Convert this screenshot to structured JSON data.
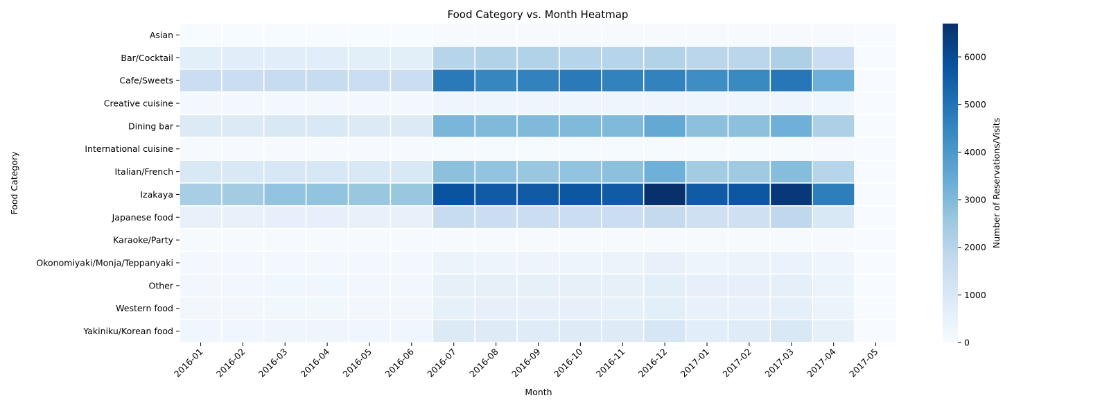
{
  "chart_data": {
    "type": "heatmap",
    "title": "Food Category vs. Month Heatmap",
    "xlabel": "Month",
    "ylabel": "Food Category",
    "colorbar_label": "Number of Reservations/Visits",
    "colorscale": "Blues",
    "vmin": 0,
    "vmax": 6700,
    "colorbar_ticks": [
      0,
      1000,
      2000,
      3000,
      4000,
      5000,
      6000
    ],
    "x": [
      "2016-01",
      "2016-02",
      "2016-03",
      "2016-04",
      "2016-05",
      "2016-06",
      "2016-07",
      "2016-08",
      "2016-09",
      "2016-10",
      "2016-11",
      "2016-12",
      "2017-01",
      "2017-02",
      "2017-03",
      "2017-04",
      "2017-05"
    ],
    "y": [
      "Asian",
      "Bar/Cocktail",
      "Cafe/Sweets",
      "Creative cuisine",
      "Dining bar",
      "International cuisine",
      "Italian/French",
      "Izakaya",
      "Japanese food",
      "Karaoke/Party",
      "Okonomiyaki/Monja/Teppanyaki",
      "Other",
      "Western food",
      "Yakiniku/Korean food"
    ],
    "values": [
      [
        20,
        20,
        20,
        20,
        20,
        20,
        30,
        30,
        30,
        30,
        30,
        30,
        30,
        30,
        30,
        30,
        0
      ],
      [
        700,
        750,
        750,
        750,
        700,
        700,
        2000,
        2100,
        2100,
        2000,
        2000,
        2100,
        1900,
        1900,
        2200,
        1500,
        0
      ],
      [
        1500,
        1500,
        1600,
        1600,
        1500,
        1500,
        4800,
        4500,
        4600,
        4800,
        4600,
        4600,
        4300,
        4400,
        4900,
        3300,
        0
      ],
      [
        150,
        150,
        150,
        150,
        150,
        150,
        300,
        300,
        300,
        300,
        300,
        300,
        300,
        300,
        300,
        250,
        0
      ],
      [
        900,
        900,
        1000,
        1000,
        900,
        900,
        3100,
        3000,
        3000,
        3000,
        3000,
        3500,
        2800,
        2800,
        3300,
        2200,
        0
      ],
      [
        40,
        40,
        40,
        40,
        40,
        40,
        60,
        60,
        60,
        60,
        60,
        60,
        60,
        60,
        60,
        50,
        0
      ],
      [
        1000,
        1000,
        1050,
        1050,
        1000,
        1000,
        2800,
        2700,
        2600,
        2700,
        2800,
        3300,
        2400,
        2500,
        2900,
        2000,
        0
      ],
      [
        2300,
        2400,
        2700,
        2700,
        2600,
        2600,
        5800,
        5600,
        5600,
        5700,
        5600,
        6700,
        5600,
        5700,
        6500,
        4700,
        0
      ],
      [
        500,
        500,
        550,
        550,
        500,
        500,
        1600,
        1500,
        1500,
        1500,
        1500,
        1700,
        1400,
        1400,
        1800,
        1000,
        0
      ],
      [
        30,
        30,
        30,
        30,
        30,
        30,
        50,
        50,
        50,
        50,
        50,
        50,
        50,
        50,
        50,
        50,
        0
      ],
      [
        150,
        150,
        180,
        180,
        150,
        150,
        400,
        350,
        350,
        350,
        400,
        500,
        350,
        400,
        450,
        300,
        0
      ],
      [
        200,
        200,
        250,
        250,
        200,
        200,
        600,
        600,
        600,
        600,
        600,
        700,
        550,
        550,
        650,
        400,
        0
      ],
      [
        200,
        200,
        220,
        220,
        200,
        200,
        600,
        550,
        550,
        550,
        600,
        700,
        500,
        500,
        650,
        400,
        0
      ],
      [
        250,
        250,
        300,
        300,
        250,
        250,
        900,
        850,
        800,
        850,
        850,
        1100,
        750,
        800,
        1000,
        600,
        0
      ]
    ]
  }
}
